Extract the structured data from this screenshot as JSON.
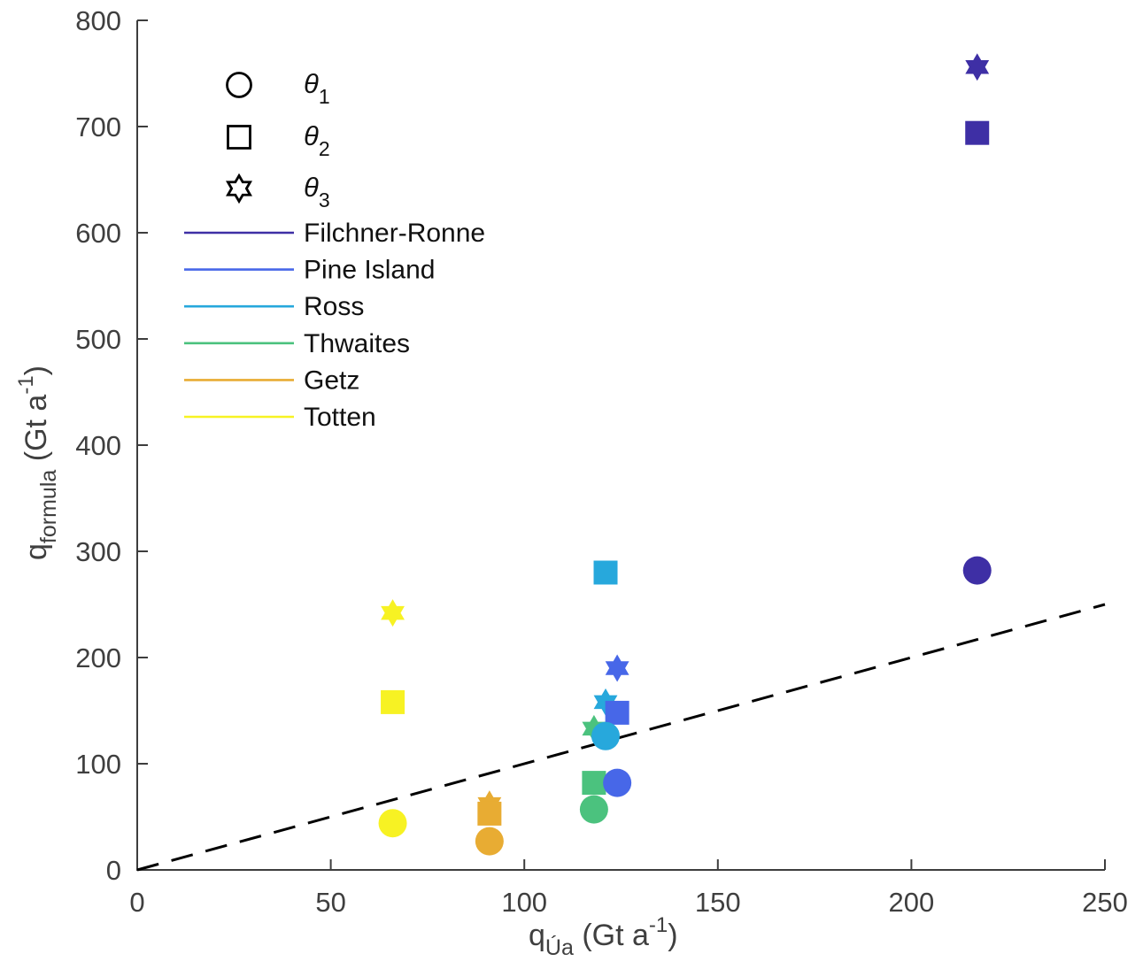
{
  "figure": {
    "background": "#ffffff",
    "axis_color": "#3d3d3d",
    "tick_label_color": "#3f3f3f",
    "legend_text_color": "#111111"
  },
  "chart_data": {
    "type": "scatter",
    "title": "",
    "xlabel": {
      "base": "q",
      "sub": "Úa",
      "unit_open": " (Gt a",
      "unit_exp": "-1",
      "unit_close": ")"
    },
    "ylabel": {
      "base": "q",
      "sub": "formula",
      "unit_open": " (Gt a",
      "unit_exp": "-1",
      "unit_close": ")"
    },
    "xlim": [
      0,
      250
    ],
    "ylim": [
      0,
      800
    ],
    "xticks": [
      "0",
      "50",
      "100",
      "150",
      "200",
      "250"
    ],
    "yticks": [
      "0",
      "100",
      "200",
      "300",
      "400",
      "500",
      "600",
      "700",
      "800"
    ],
    "grid": false,
    "axes_box": "left-bottom-only",
    "identity_line": {
      "style": "dashed",
      "color": "#000000",
      "x": [
        0,
        250
      ],
      "y": [
        0,
        250
      ]
    },
    "marker_legend": [
      {
        "shape": "circle",
        "label": "θ",
        "sub": "1"
      },
      {
        "shape": "square",
        "label": "θ",
        "sub": "2"
      },
      {
        "shape": "hexagram",
        "label": "θ",
        "sub": "3"
      }
    ],
    "legend_position": "upper-left",
    "legend_box": false,
    "series": [
      {
        "name": "Filchner-Ronne",
        "color": "#3E2FA5",
        "x": 217,
        "theta1": 282,
        "theta2": 694,
        "theta3": 756
      },
      {
        "name": "Pine Island",
        "color": "#4767E8",
        "x": 124,
        "theta1": 82,
        "theta2": 148,
        "theta3": 190
      },
      {
        "name": "Ross",
        "color": "#27A8DC",
        "x": 121,
        "theta1": 126,
        "theta2": 280,
        "theta3": 158
      },
      {
        "name": "Thwaites",
        "color": "#4BC27E",
        "x": 118,
        "theta1": 57,
        "theta2": 82,
        "theta3": 133
      },
      {
        "name": "Getz",
        "color": "#E8AC33",
        "x": 91,
        "theta1": 27,
        "theta2": 53,
        "theta3": 62
      },
      {
        "name": "Totten",
        "color": "#F7F223",
        "x": 66,
        "theta1": 44,
        "theta2": 158,
        "theta3": 242
      }
    ]
  }
}
